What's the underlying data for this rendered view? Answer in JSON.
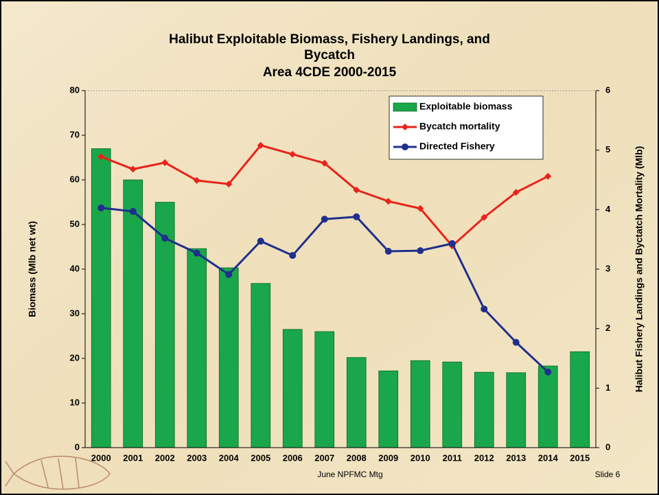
{
  "chart_data": {
    "type": "bar",
    "title": [
      "Halibut Exploitable Biomass, Fishery Landings, and",
      "Bycatch",
      "Area 4CDE 2000-2015"
    ],
    "y_label": "Biomass (Mlb net wt)",
    "y2_label": "Halibut Fishery Landings and Byctatch Mortality (Mlb)",
    "categories": [
      "2000",
      "2001",
      "2002",
      "2003",
      "2004",
      "2005",
      "2006",
      "2007",
      "2008",
      "2009",
      "2010",
      "2011",
      "2012",
      "2013",
      "2014",
      "2015"
    ],
    "series": [
      {
        "name": "Exploitable biomass",
        "type": "bar",
        "axis": "y",
        "color": "#1aa64a",
        "values": [
          67,
          60,
          55,
          44.6,
          40.3,
          36.8,
          26.5,
          26,
          20.2,
          17.2,
          19.5,
          19.2,
          16.9,
          16.8,
          18.3,
          21.5
        ]
      },
      {
        "name": "Bycatch mortality",
        "type": "line",
        "marker": "diamond",
        "axis": "y2",
        "color": "#e8231a",
        "values": [
          4.89,
          4.68,
          4.79,
          4.49,
          4.43,
          5.08,
          4.93,
          4.78,
          4.33,
          4.14,
          4.02,
          3.39,
          3.87,
          4.29,
          4.56,
          null
        ]
      },
      {
        "name": "Directed Fishery",
        "type": "line",
        "marker": "circle",
        "axis": "y2",
        "color": "#1f2f8c",
        "values": [
          4.03,
          3.97,
          3.52,
          3.27,
          2.91,
          3.47,
          3.23,
          3.84,
          3.88,
          3.3,
          3.31,
          3.43,
          2.33,
          1.77,
          1.27,
          null
        ]
      }
    ],
    "ylim": [
      0,
      80
    ],
    "yticks": [
      0,
      10,
      20,
      30,
      40,
      50,
      60,
      70,
      80
    ],
    "y2lim": [
      0,
      6
    ],
    "y2ticks": [
      0,
      1,
      2,
      3,
      4,
      5,
      6
    ],
    "grid": false,
    "legend": "upper right"
  },
  "footer": {
    "left": "June NPFMC Mtg",
    "right": "Slide 6"
  }
}
